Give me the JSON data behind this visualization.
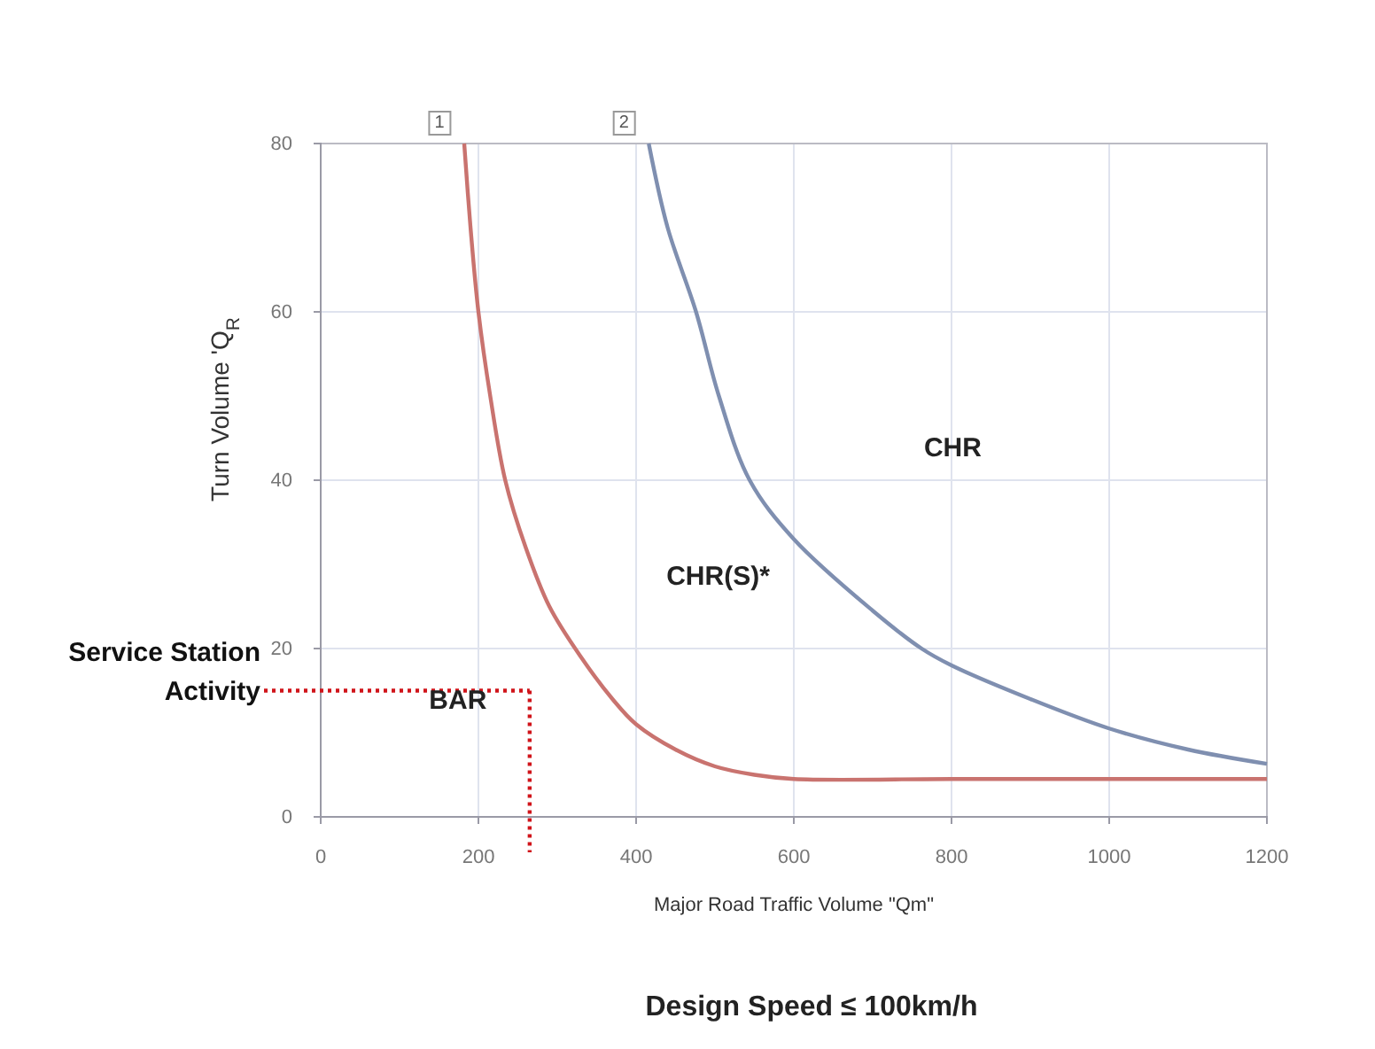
{
  "chart_data": {
    "type": "line",
    "title": "Design Speed ≤ 100km/h",
    "xlabel": "Major Road Traffic Volume \"Qm\"",
    "ylabel": "Turn Volume 'Q$_{R}$",
    "xlim": [
      0,
      1200
    ],
    "ylim": [
      0,
      80
    ],
    "xticks": [
      0,
      200,
      400,
      600,
      800,
      1000,
      1200
    ],
    "yticks": [
      0,
      20,
      40,
      60,
      80
    ],
    "grid": true,
    "marker": "none",
    "line_style": "solid",
    "series": [
      {
        "color": "#c9736f",
        "x": [
          182,
          190,
          200,
          215,
          234,
          260,
          290,
          330,
          370,
          400,
          450,
          500,
          550,
          600,
          800,
          1000,
          1200
        ],
        "values": [
          80,
          70,
          60,
          50,
          40,
          32,
          25,
          19,
          14,
          11,
          8,
          6,
          5,
          4.5,
          4.5,
          4.5,
          4.5
        ]
      },
      {
        "color": "#7f8fb0",
        "x": [
          416,
          440,
          476,
          505,
          544,
          600,
          700,
          762,
          800,
          900,
          1000,
          1100,
          1200
        ],
        "values": [
          80,
          70,
          60,
          50,
          40,
          33,
          24.5,
          20,
          18,
          14,
          10.5,
          8,
          6.3
        ]
      }
    ],
    "ref_lines": [
      {
        "axis": "y",
        "value": 15,
        "label": "Service Station Activity",
        "color": "#d0141a",
        "line_style": "dotted"
      },
      {
        "axis": "x",
        "value": 265,
        "color": "#d0141a",
        "line_style": "dotted"
      }
    ],
    "annotations": [
      {
        "text": "1",
        "x": 182,
        "y": 80
      },
      {
        "text": "2",
        "x": 416,
        "y": 80
      },
      "BAR",
      "CHR(S)*",
      "CHR"
    ]
  }
}
